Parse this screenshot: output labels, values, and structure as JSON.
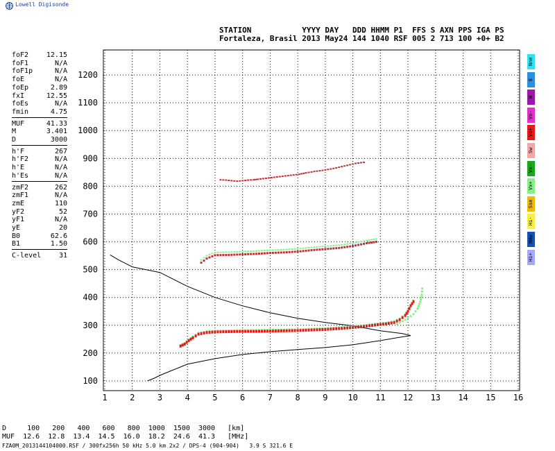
{
  "logo": {
    "name": "Lowell Digisonde"
  },
  "header": {
    "line1": "STATION           YYYY DAY   DDD HHMM P1  FFS S AXN PPS IGA PS",
    "line2": "Fortaleza, Brasil 2013 May24 144 1040 RSF 005 2 713 100 +0+ B2"
  },
  "params": [
    {
      "key": "foF2",
      "val": "12.15"
    },
    {
      "key": "foF1",
      "val": "N/A"
    },
    {
      "key": "foF1p",
      "val": "N/A"
    },
    {
      "key": "foE",
      "val": "N/A"
    },
    {
      "key": "foEp",
      "val": "2.89"
    },
    {
      "key": "fxI",
      "val": "12.55"
    },
    {
      "key": "foEs",
      "val": "N/A"
    },
    {
      "key": "fmin",
      "val": "4.75"
    },
    {
      "key": "MUF",
      "val": "41.33"
    },
    {
      "key": "M",
      "val": "3.401"
    },
    {
      "key": "D",
      "val": "3000"
    },
    {
      "key": "h'F",
      "val": "267"
    },
    {
      "key": "h'F2",
      "val": "N/A"
    },
    {
      "key": "h'E",
      "val": "N/A"
    },
    {
      "key": "h'Es",
      "val": "N/A"
    },
    {
      "key": "zmF2",
      "val": "262"
    },
    {
      "key": "zmF1",
      "val": "N/A"
    },
    {
      "key": "zmE",
      "val": "110"
    },
    {
      "key": "yF2",
      "val": "52"
    },
    {
      "key": "yF1",
      "val": "N/A"
    },
    {
      "key": "yE",
      "val": "20"
    },
    {
      "key": "B0",
      "val": "62.6"
    },
    {
      "key": "B1",
      "val": "1.50"
    },
    {
      "key": "C-level",
      "val": "31"
    }
  ],
  "legend": [
    {
      "label": "Nne",
      "color": "#33e0f0"
    },
    {
      "label": "E",
      "color": "#2a8fe0"
    },
    {
      "label": "W",
      "color": "#9a1aa8"
    },
    {
      "label": "Vo-",
      "color": "#e030c8"
    },
    {
      "label": "Vo+",
      "color": "#e81818"
    },
    {
      "label": "Sw",
      "color": "#f0a8a8"
    },
    {
      "label": "Vx-",
      "color": "#1aa81a"
    },
    {
      "label": "Vx+",
      "color": "#88f088"
    },
    {
      "label": "Sse",
      "color": "#f0b800"
    },
    {
      "label": "Hi-",
      "color": "#f8f040"
    },
    {
      "label": "Nmw",
      "color": "#1850b0"
    },
    {
      "label": "Hi+",
      "color": "#a8a8f8"
    }
  ],
  "footer": {
    "line1": "D     100   200   400   600   800  1000  1500  3000   [km]",
    "line2": "MUF  12.6  12.8  13.4  14.5  16.0  18.2  24.6  41.3   [MHz]",
    "line3": "FZA0M_2013144104000.RSF / 300fx256h 50 kHz 5.0 km 2x2 / DPS-4 (904-904)   3.9 S 321.6 E"
  },
  "chart_data": {
    "type": "scatter",
    "x_ticks": [
      1,
      2,
      3,
      4,
      5,
      6,
      7,
      8,
      9,
      10,
      11,
      12,
      13,
      14,
      15,
      16
    ],
    "y_ticks": [
      100,
      200,
      300,
      400,
      500,
      600,
      700,
      800,
      900,
      1000,
      1100,
      1200
    ],
    "xlim": [
      0.95,
      16.05
    ],
    "ylim": [
      65,
      1290
    ],
    "grid": true,
    "profile": [
      [
        2.55,
        100
      ],
      [
        2.8,
        110
      ],
      [
        3.0,
        120
      ],
      [
        3.5,
        140
      ],
      [
        4.0,
        160
      ],
      [
        5.0,
        180
      ],
      [
        6.0,
        195
      ],
      [
        7.0,
        205
      ],
      [
        8.0,
        213
      ],
      [
        9.0,
        220
      ],
      [
        10.0,
        230
      ],
      [
        11.0,
        245
      ],
      [
        11.6,
        255
      ],
      [
        12.1,
        263
      ],
      [
        11.8,
        270
      ],
      [
        11.0,
        280
      ],
      [
        10.0,
        298
      ],
      [
        9.0,
        310
      ],
      [
        8.0,
        325
      ],
      [
        7.0,
        345
      ],
      [
        6.0,
        370
      ],
      [
        5.0,
        400
      ],
      [
        4.0,
        440
      ],
      [
        3.0,
        490
      ],
      [
        2.0,
        510
      ],
      [
        1.5,
        535
      ],
      [
        1.2,
        553
      ]
    ],
    "trace_F": [
      [
        3.75,
        225
      ],
      [
        3.9,
        232
      ],
      [
        4.05,
        245
      ],
      [
        4.2,
        255
      ],
      [
        4.4,
        268
      ],
      [
        4.7,
        274
      ],
      [
        5.0,
        276
      ],
      [
        5.5,
        277
      ],
      [
        6.0,
        278
      ],
      [
        6.5,
        278
      ],
      [
        7.0,
        279
      ],
      [
        7.5,
        280
      ],
      [
        8.0,
        281
      ],
      [
        8.5,
        283
      ],
      [
        9.0,
        285
      ],
      [
        9.5,
        288
      ],
      [
        10.0,
        292
      ],
      [
        10.5,
        297
      ],
      [
        10.9,
        302
      ],
      [
        11.2,
        305
      ],
      [
        11.5,
        310
      ],
      [
        11.7,
        320
      ],
      [
        11.9,
        335
      ],
      [
        12.0,
        350
      ],
      [
        12.1,
        370
      ],
      [
        12.2,
        385
      ]
    ],
    "trace_x": [
      [
        11.6,
        305
      ],
      [
        11.8,
        315
      ],
      [
        12.0,
        325
      ],
      [
        12.2,
        340
      ],
      [
        12.35,
        360
      ],
      [
        12.45,
        385
      ],
      [
        12.5,
        410
      ],
      [
        12.52,
        432
      ]
    ],
    "trace_echo2": [
      [
        4.5,
        525
      ],
      [
        4.7,
        540
      ],
      [
        5.0,
        552
      ],
      [
        5.5,
        553
      ],
      [
        6.0,
        555
      ],
      [
        6.5,
        557
      ],
      [
        7.0,
        560
      ],
      [
        7.5,
        562
      ],
      [
        8.0,
        565
      ],
      [
        8.5,
        570
      ],
      [
        9.0,
        574
      ],
      [
        9.5,
        578
      ],
      [
        10.0,
        585
      ],
      [
        10.5,
        595
      ],
      [
        10.85,
        600
      ]
    ],
    "trace_echo3": [
      [
        5.2,
        823
      ],
      [
        5.4,
        822
      ],
      [
        5.6,
        820
      ],
      [
        5.8,
        818
      ],
      [
        6.0,
        820
      ],
      [
        6.2,
        822
      ],
      [
        6.4,
        823
      ],
      [
        6.55,
        825
      ],
      [
        8.05,
        843
      ],
      [
        8.3,
        848
      ],
      [
        8.6,
        853
      ],
      [
        8.9,
        857
      ],
      [
        9.2,
        862
      ],
      [
        9.4,
        866
      ],
      [
        10.1,
        882
      ],
      [
        10.4,
        886
      ]
    ]
  }
}
